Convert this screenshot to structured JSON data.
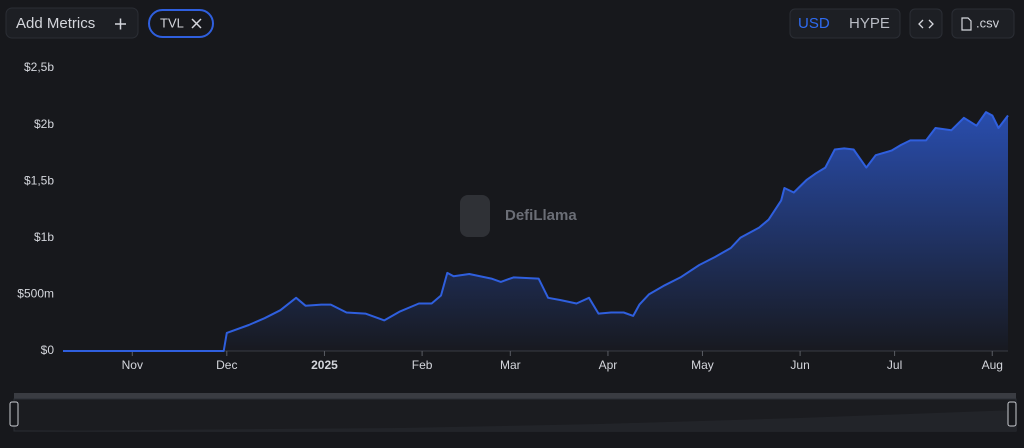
{
  "toolbar": {
    "add_metrics": "Add Metrics",
    "currencies": [
      "USD",
      "HYPE"
    ],
    "download": ".csv"
  },
  "watermark": "DefiLlama",
  "chart_data": {
    "type": "line",
    "x": [
      9,
      60,
      61,
      68,
      73,
      78,
      83,
      86,
      91,
      94,
      99,
      105,
      111,
      116,
      122,
      126,
      129,
      131,
      133,
      138,
      145,
      148,
      152,
      160,
      163,
      167,
      172,
      176,
      179,
      183,
      187,
      190,
      192,
      195,
      200,
      205,
      211,
      216,
      221,
      224,
      230,
      233,
      237,
      238,
      241,
      245,
      248,
      251,
      254,
      257,
      260,
      264,
      267,
      272,
      275,
      278,
      283,
      286,
      291,
      295,
      299,
      302,
      304,
      306,
      309
    ],
    "series": [
      {
        "name": "TVL",
        "color": "#2f5fde",
        "values": [
          0,
          0,
          160000000,
          230000000,
          290000000,
          360000000,
          470000000,
          400000000,
          410000000,
          410000000,
          340000000,
          330000000,
          270000000,
          350000000,
          420000000,
          420000000,
          490000000,
          690000000,
          660000000,
          680000000,
          640000000,
          610000000,
          650000000,
          640000000,
          470000000,
          450000000,
          420000000,
          470000000,
          330000000,
          340000000,
          340000000,
          310000000,
          410000000,
          500000000,
          580000000,
          650000000,
          760000000,
          830000000,
          910000000,
          1000000000,
          1090000000,
          1160000000,
          1330000000,
          1440000000,
          1400000000,
          1510000000,
          1570000000,
          1620000000,
          1780000000,
          1790000000,
          1780000000,
          1620000000,
          1730000000,
          1770000000,
          1820000000,
          1860000000,
          1860000000,
          1970000000,
          1950000000,
          2060000000,
          1990000000,
          2110000000,
          2080000000,
          1970000000,
          2080000000
        ]
      }
    ],
    "xlim": [
      9,
      309
    ],
    "xticks": [
      {
        "value": 31,
        "label": "Nov"
      },
      {
        "value": 61,
        "label": "Dec"
      },
      {
        "value": 92,
        "label": "2025"
      },
      {
        "value": 123,
        "label": "Feb"
      },
      {
        "value": 151,
        "label": "Mar"
      },
      {
        "value": 182,
        "label": "Apr"
      },
      {
        "value": 212,
        "label": "May"
      },
      {
        "value": 243,
        "label": "Jun"
      },
      {
        "value": 273,
        "label": "Jul"
      },
      {
        "value": 304,
        "label": "Aug"
      }
    ],
    "ylim": [
      0,
      2500000000
    ],
    "yticks": [
      {
        "value": 0,
        "label": "$0"
      },
      {
        "value": 500000000,
        "label": "$500m"
      },
      {
        "value": 1000000000,
        "label": "$1b"
      },
      {
        "value": 1500000000,
        "label": "$1,5b"
      },
      {
        "value": 2000000000,
        "label": "$2b"
      },
      {
        "value": 2500000000,
        "label": "$2,5b"
      }
    ]
  }
}
